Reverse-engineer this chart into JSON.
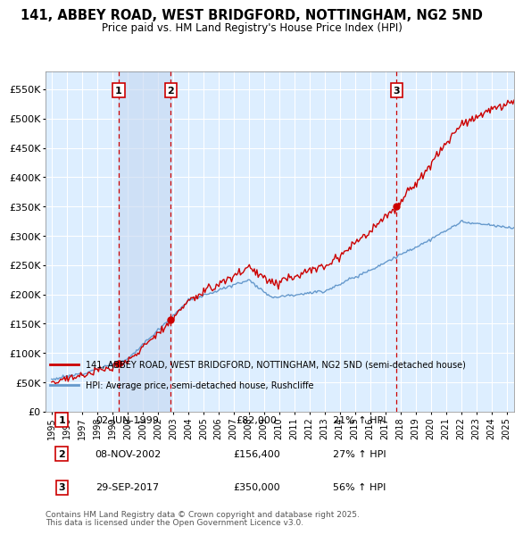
{
  "title": "141, ABBEY ROAD, WEST BRIDGFORD, NOTTINGHAM, NG2 5ND",
  "subtitle": "Price paid vs. HM Land Registry's House Price Index (HPI)",
  "ylim": [
    0,
    580000
  ],
  "yticks": [
    0,
    50000,
    100000,
    150000,
    200000,
    250000,
    300000,
    350000,
    400000,
    450000,
    500000,
    550000
  ],
  "ytick_labels": [
    "£0",
    "£50K",
    "£100K",
    "£150K",
    "£200K",
    "£250K",
    "£300K",
    "£350K",
    "£400K",
    "£450K",
    "£500K",
    "£550K"
  ],
  "xlim_start": 1994.6,
  "xlim_end": 2025.5,
  "xticks": [
    1995,
    1996,
    1997,
    1998,
    1999,
    2000,
    2001,
    2002,
    2003,
    2004,
    2005,
    2006,
    2007,
    2008,
    2009,
    2010,
    2011,
    2012,
    2013,
    2014,
    2015,
    2016,
    2017,
    2018,
    2019,
    2020,
    2021,
    2022,
    2023,
    2024,
    2025
  ],
  "sale_events": [
    {
      "num": 1,
      "date": "02-JUN-1999",
      "year": 1999.42,
      "price": 82000,
      "pct": "21%",
      "dir": "↑"
    },
    {
      "num": 2,
      "date": "08-NOV-2002",
      "year": 2002.85,
      "price": 156400,
      "pct": "27%",
      "dir": "↑"
    },
    {
      "num": 3,
      "date": "29-SEP-2017",
      "year": 2017.75,
      "price": 350000,
      "pct": "56%",
      "dir": "↑"
    }
  ],
  "legend_line1": "141, ABBEY ROAD, WEST BRIDGFORD, NOTTINGHAM, NG2 5ND (semi-detached house)",
  "legend_line2": "HPI: Average price, semi-detached house, Rushcliffe",
  "footer1": "Contains HM Land Registry data © Crown copyright and database right 2025.",
  "footer2": "This data is licensed under the Open Government Licence v3.0.",
  "red_color": "#cc0000",
  "blue_color": "#6699cc",
  "shade_color": "#ddeeff",
  "bg_color": "#ddeeff"
}
